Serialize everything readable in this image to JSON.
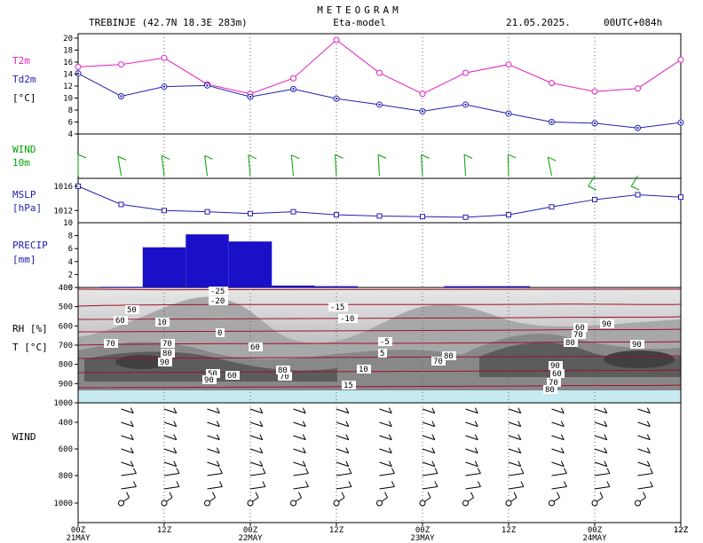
{
  "header": {
    "title": "METEOGRAM",
    "location": "TREBINJE (42.7N 18.3E  283m)",
    "model": "Eta-model",
    "date": "21.05.2025.",
    "run": "00UTC+084h"
  },
  "colors": {
    "t2m": "#e020c0",
    "td2m": "#2020b0",
    "wind10m": "#00a000",
    "mslp": "#2020b0",
    "precip": "#1a10c8",
    "rh_contour": "#ffffff",
    "temp_contour": "#a01030",
    "axis_text_blue": "#2020b0",
    "axis_text_green": "#00a000",
    "axis_text_purple": "#8000a0"
  },
  "panels": {
    "temp": {
      "label1": "T2m",
      "label2": "Td2m",
      "label3": "[°C]"
    },
    "wind10": {
      "label1": "WIND",
      "label2": "10m"
    },
    "mslp": {
      "label1": "MSLP",
      "label2": "[hPa]"
    },
    "precip": {
      "label1": "PRECIP",
      "label2": "[mm]"
    },
    "rh": {
      "label1": "RH [%]",
      "label2": "T [°C]"
    },
    "windprof": {
      "label1": "WIND"
    }
  },
  "chart_data": [
    {
      "type": "line",
      "name": "temperature",
      "x": [
        0,
        6,
        12,
        18,
        24,
        30,
        36,
        42,
        48,
        54,
        60,
        66,
        72,
        78,
        84
      ],
      "series": [
        {
          "name": "T2m",
          "values": [
            15.2,
            15.6,
            16.7,
            12.3,
            10.7,
            13.3,
            19.7,
            14.2,
            10.7,
            14.2,
            15.6,
            12.5,
            11.1,
            11.6,
            16.4
          ]
        },
        {
          "name": "Td2m",
          "values": [
            14.1,
            10.3,
            11.9,
            12.1,
            10.2,
            11.5,
            9.9,
            8.9,
            7.8,
            8.9,
            7.4,
            6.0,
            5.8,
            5.0,
            5.9
          ]
        }
      ],
      "ylim": [
        4,
        20
      ],
      "yticks": [
        "4",
        "6",
        "8",
        "10",
        "12",
        "14",
        "16",
        "18",
        "20"
      ]
    },
    {
      "type": "line",
      "name": "wind10m",
      "x": [
        0,
        6,
        12,
        18,
        24,
        30,
        36,
        42,
        48,
        54,
        60,
        66,
        72,
        78,
        84
      ],
      "barbs": [
        {
          "dir": 0,
          "kt": 5
        },
        {
          "dir": 335,
          "kt": 10
        },
        {
          "dir": 340,
          "kt": 10
        },
        {
          "dir": 340,
          "kt": 10
        },
        {
          "dir": 345,
          "kt": 10
        },
        {
          "dir": 345,
          "kt": 10
        },
        {
          "dir": 350,
          "kt": 10
        },
        {
          "dir": 350,
          "kt": 10
        },
        {
          "dir": 350,
          "kt": 10
        },
        {
          "dir": 350,
          "kt": 10
        },
        {
          "dir": 355,
          "kt": 10
        },
        {
          "dir": 330,
          "kt": 10
        },
        {
          "dir": 240,
          "kt": 10
        },
        {
          "dir": 240,
          "kt": 10
        },
        {
          "dir": 0,
          "kt": 0
        }
      ]
    },
    {
      "type": "line",
      "name": "mslp",
      "x": [
        0,
        6,
        12,
        18,
        24,
        30,
        36,
        42,
        48,
        54,
        60,
        66,
        72,
        78,
        84
      ],
      "values": [
        1016.0,
        1013.0,
        1012.0,
        1011.8,
        1011.5,
        1011.8,
        1011.3,
        1011.1,
        1011.0,
        1010.9,
        1011.3,
        1012.6,
        1013.8,
        1014.6,
        1014.2
      ],
      "ylim": [
        1010,
        1017
      ],
      "yticks": [
        "1016",
        "1012"
      ],
      "ytick_values": [
        1016,
        1012
      ]
    },
    {
      "type": "bar",
      "name": "precip",
      "x_start": [
        3,
        9,
        15,
        21,
        27,
        33,
        39,
        45,
        51,
        57
      ],
      "values": [
        0.1,
        6.2,
        8.2,
        7.1,
        0.3,
        0.2,
        0.0,
        0.0,
        0.2,
        0.2
      ],
      "ylim": [
        0,
        10
      ],
      "yticks": [
        "0",
        "2",
        "4",
        "6",
        "8",
        "10"
      ]
    },
    {
      "type": "heatmap",
      "name": "rh_temperature_cross_section",
      "pressure_levels": [
        "400",
        "500",
        "600",
        "700",
        "800",
        "900",
        "1000"
      ],
      "rh_labels": [
        "50",
        "60",
        "70",
        "80",
        "90",
        "10",
        "60",
        "50",
        "70",
        "80",
        "90",
        "70",
        "80",
        "90",
        "60",
        "70",
        "80",
        "90",
        "60",
        "70",
        "80",
        "90",
        "70",
        "60"
      ],
      "temp_labels": [
        "-25",
        "-20",
        "-15",
        "-10",
        "-5",
        "0",
        "5",
        "10",
        "15"
      ]
    },
    {
      "type": "scatter",
      "name": "wind_profile",
      "pressure_levels": [
        "400",
        "600",
        "800",
        "1000"
      ]
    }
  ],
  "time_axis": {
    "ticks": [
      "00Z",
      "12Z",
      "00Z",
      "12Z",
      "00Z",
      "12Z",
      "00Z",
      "12Z"
    ],
    "dates": [
      "21MAY",
      "22MAY",
      "23MAY",
      "24MAY"
    ]
  }
}
